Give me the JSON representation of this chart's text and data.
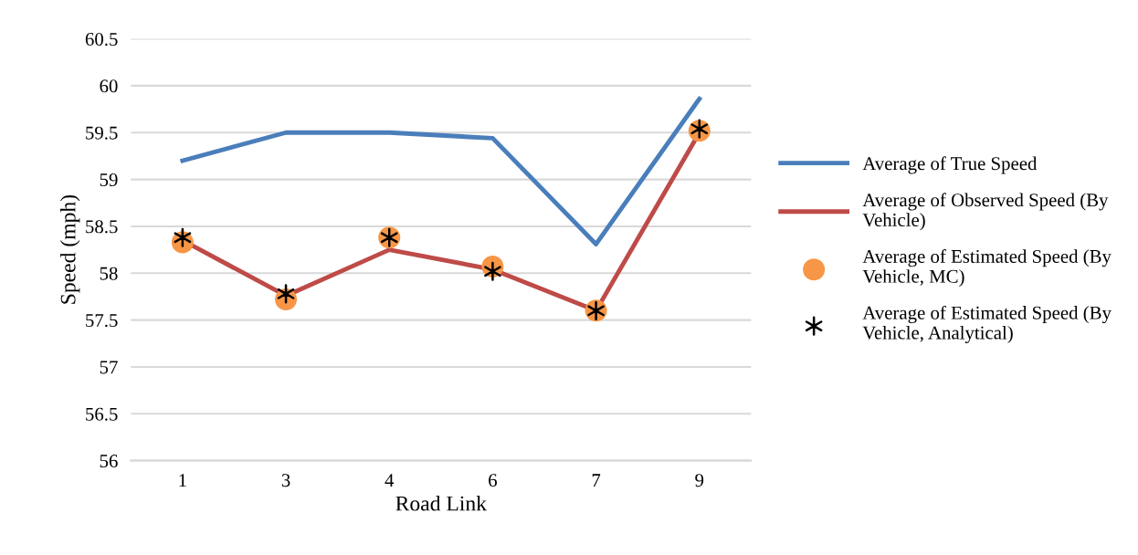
{
  "chart_data": {
    "type": "line",
    "xlabel": "Road Link",
    "ylabel": "Speed (mph)",
    "categories": [
      "1",
      "3",
      "4",
      "6",
      "7",
      "9"
    ],
    "series": [
      {
        "name": "Average of True Speed",
        "color": "#4a7ebb",
        "values": [
          59.2,
          59.5,
          59.5,
          59.44,
          58.31,
          59.86
        ],
        "marker": "none"
      },
      {
        "name": "Average of Observed Speed (By Vehicle)",
        "color": "#be4b48",
        "values": [
          58.35,
          57.76,
          58.25,
          58.04,
          57.6,
          59.5
        ],
        "marker": "none"
      },
      {
        "name": "Average of Estimated Speed (By Vehicle, MC)",
        "type": "scatter",
        "color": "#f79646",
        "values": [
          58.33,
          57.72,
          58.38,
          58.07,
          57.6,
          59.52
        ],
        "marker": "circle"
      },
      {
        "name": "Average of Estimated Speed (By Vehicle, Analytical)",
        "type": "scatter",
        "color": "#000000",
        "values": [
          58.38,
          57.78,
          58.38,
          58.02,
          57.6,
          59.54
        ],
        "marker": "cross"
      }
    ],
    "ylim": [
      56,
      60.5
    ],
    "yticks": [
      56,
      56.5,
      57,
      57.5,
      58,
      58.5,
      59,
      59.5,
      60,
      60.5
    ],
    "grid": "y",
    "legend": "right"
  }
}
